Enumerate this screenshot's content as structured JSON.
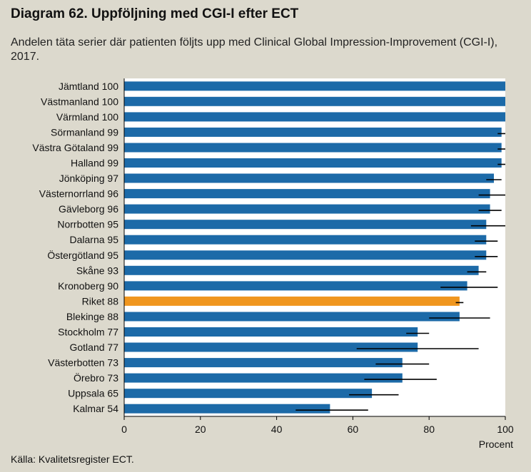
{
  "header": {
    "title": "Diagram 62. Uppföljning med CGI-I efter ECT",
    "subtitle": "Andelen täta serier där patienten följts upp med Clinical Global Impression-Improvement (CGI-I), 2017."
  },
  "footer": {
    "source": "Källa: Kvalitetsregister ECT."
  },
  "colors": {
    "bar": "#1c6aa8",
    "highlight": "#f0961e",
    "error_bar": "#000000",
    "plot_background": "#ffffff"
  },
  "chart_data": {
    "type": "bar",
    "orientation": "horizontal",
    "title": "Uppföljning med CGI-I efter ECT",
    "xlabel": "Procent",
    "ylabel": "",
    "xlim": [
      0,
      100
    ],
    "xticks": [
      0,
      20,
      40,
      60,
      80,
      100
    ],
    "highlight_category": "Riket",
    "categories": [
      "Jämtland",
      "Västmanland",
      "Värmland",
      "Sörmanland",
      "Västra Götaland",
      "Halland",
      "Jönköping",
      "Västernorrland",
      "Gävleborg",
      "Norrbotten",
      "Dalarna",
      "Östergötland",
      "Skåne",
      "Kronoberg",
      "Riket",
      "Blekinge",
      "Stockholm",
      "Gotland",
      "Västerbotten",
      "Örebro",
      "Uppsala",
      "Kalmar"
    ],
    "values": [
      100,
      100,
      100,
      99,
      99,
      99,
      97,
      96,
      96,
      95,
      95,
      95,
      93,
      90,
      88,
      88,
      77,
      77,
      73,
      73,
      65,
      54
    ],
    "error_low": [
      100,
      100,
      100,
      98,
      98,
      98,
      95,
      93,
      93,
      91,
      92,
      92,
      90,
      83,
      87,
      80,
      74,
      61,
      66,
      63,
      59,
      45
    ],
    "error_high": [
      100,
      100,
      100,
      100,
      100,
      100,
      99,
      100,
      99,
      100,
      98,
      98,
      95,
      98,
      89,
      96,
      80,
      93,
      80,
      82,
      72,
      64
    ]
  }
}
